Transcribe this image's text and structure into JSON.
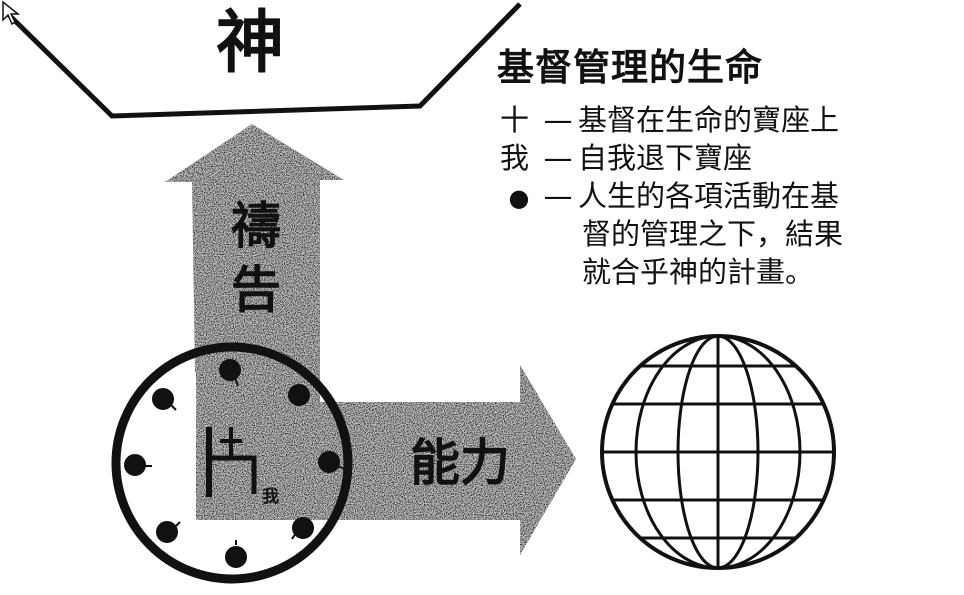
{
  "god_label": "神",
  "title": "基督管理的生命",
  "legend": {
    "cross": {
      "symbol": "十",
      "dash": "—",
      "text": "基督在生命的寶座上"
    },
    "self": {
      "symbol": "我",
      "dash": "—",
      "text": "自我退下寶座"
    },
    "activities": {
      "symbol": "●",
      "dash": "—",
      "text_lines": [
        "人生的各項活動在基",
        "督的管理之下，結果",
        "就合乎神的計畫。"
      ]
    }
  },
  "prayer_label": [
    "禱",
    "告"
  ],
  "power_label": "能力",
  "self_label": "我",
  "colors": {
    "ink": "#111111",
    "paper": "#ffffff",
    "arrow_fill": "#b5b5b5"
  }
}
